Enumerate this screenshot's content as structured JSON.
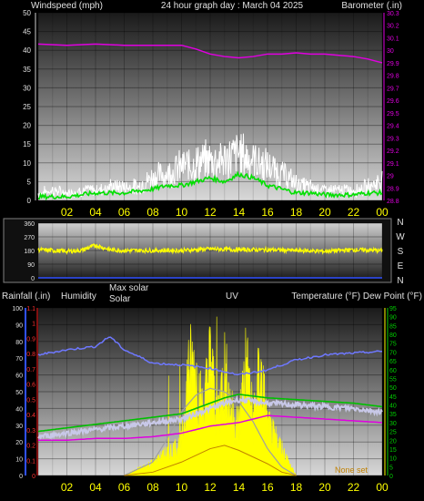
{
  "header": {
    "windspeed_label": "Windspeed (mph)",
    "title": "24 hour graph day : March 04 2025",
    "barometer_label": "Barometer (.in)"
  },
  "direction_labels": [
    "N",
    "W",
    "S",
    "E",
    "N"
  ],
  "lower_header": {
    "rainfall_label": "Rainfall (.in)",
    "humidity_label": "Humidity",
    "maxsolar_label": "Max solar",
    "solar_label": "Solar",
    "uv_label": "UV",
    "temperature_label": "Temperature (°F) Dew Point (°F)"
  },
  "colors": {
    "wind_avg": "#00e000",
    "wind_gust": "#ffffff",
    "barometer": "#e000e0",
    "direction": "#ffff00",
    "humidity": "#6e78ff",
    "solar": "#ffff00",
    "max_solar": "#a0a0a0",
    "uv": "#c08000",
    "temperature": "#ff2020",
    "dewpoint": "#00c000",
    "time_labels": "#ffff00"
  },
  "chart_data": [
    {
      "type": "line",
      "name": "wind-barometer",
      "x_ticks": [
        "02",
        "04",
        "06",
        "08",
        "10",
        "12",
        "14",
        "16",
        "18",
        "20",
        "22",
        "00"
      ],
      "y_left": {
        "label": "Windspeed (mph)",
        "ylim": [
          0,
          50
        ],
        "ticks": [
          "0",
          "5",
          "10",
          "15",
          "20",
          "25",
          "30",
          "35",
          "40",
          "45",
          "50"
        ]
      },
      "y_right": {
        "label": "Barometer (.in)",
        "ylim": [
          28.8,
          30.3
        ],
        "ticks": [
          "28.8",
          "28.9",
          "29",
          "29.1",
          "29.2",
          "29.3",
          "29.4",
          "29.5",
          "29.6",
          "29.7",
          "29.8",
          "29.9",
          "30",
          "30.1",
          "30.2",
          "30.3"
        ]
      },
      "series": [
        {
          "key": "barometer",
          "axis": "right",
          "x": [
            0,
            2,
            4,
            6,
            8,
            10,
            11,
            12,
            13,
            14,
            15,
            16,
            17,
            18,
            19,
            20,
            21,
            22,
            23,
            24
          ],
          "y": [
            30.05,
            30.04,
            30.05,
            30.04,
            30.04,
            30.04,
            30.01,
            29.97,
            29.95,
            29.94,
            29.95,
            29.97,
            29.97,
            29.98,
            29.97,
            29.97,
            29.96,
            29.95,
            29.93,
            29.9
          ]
        },
        {
          "key": "wind_avg",
          "axis": "left",
          "x": [
            0,
            1,
            2,
            3,
            4,
            5,
            6,
            7,
            8,
            9,
            10,
            11,
            12,
            13,
            14,
            15,
            16,
            17,
            18,
            19,
            20,
            21,
            22,
            23,
            24
          ],
          "y": [
            1,
            1,
            1,
            1.5,
            2,
            2,
            2,
            2.5,
            3,
            4,
            4,
            5,
            6,
            5,
            7,
            6,
            4,
            3,
            2,
            2,
            1.5,
            1.5,
            1.5,
            2,
            2
          ]
        },
        {
          "key": "wind_gust",
          "axis": "left",
          "x": [
            0,
            1,
            2,
            3,
            4,
            5,
            6,
            7,
            8,
            9,
            10,
            11,
            12,
            13,
            14,
            15,
            16,
            17,
            18,
            19,
            20,
            21,
            22,
            23,
            24
          ],
          "y": [
            2,
            3,
            2,
            3,
            3,
            4,
            4,
            4,
            7,
            8,
            10,
            11,
            12,
            12,
            14,
            12,
            10,
            8,
            5,
            4,
            3,
            3,
            3,
            4,
            6
          ]
        }
      ]
    },
    {
      "type": "line",
      "name": "wind-direction",
      "x_ticks": [
        "02",
        "04",
        "06",
        "08",
        "10",
        "12",
        "14",
        "16",
        "18",
        "20",
        "22",
        "00"
      ],
      "y": {
        "ylim": [
          0,
          360
        ],
        "ticks": [
          "0",
          "90",
          "180",
          "270",
          "360"
        ]
      },
      "series": [
        {
          "key": "direction",
          "x": [
            0,
            1,
            2,
            3,
            4,
            5,
            6,
            8,
            10,
            12,
            14,
            16,
            18,
            20,
            22,
            24
          ],
          "y": [
            185,
            180,
            175,
            180,
            215,
            185,
            180,
            180,
            180,
            190,
            185,
            185,
            180,
            175,
            185,
            180
          ]
        }
      ]
    },
    {
      "type": "line",
      "name": "solar-temperature",
      "x_ticks": [
        "02",
        "04",
        "06",
        "08",
        "10",
        "12",
        "14",
        "16",
        "18",
        "20",
        "22",
        "00"
      ],
      "y_left_rain": {
        "label": "Rainfall (.in)",
        "ylim": [
          0,
          1.1
        ],
        "ticks": [
          "0",
          "0.1",
          "0.2",
          "0.3",
          "0.4",
          "0.5",
          "0.6",
          "0.7",
          "0.8",
          "0.9",
          "1",
          "1.1"
        ]
      },
      "y_left_humidity": {
        "label": "Humidity",
        "ylim": [
          0,
          100
        ],
        "ticks": [
          "0",
          "10",
          "20",
          "30",
          "40",
          "50",
          "60",
          "70",
          "80",
          "90",
          "100"
        ]
      },
      "y_right_temp": {
        "label": "Temperature (°F) Dew Point (°F)",
        "ylim": [
          0,
          95
        ],
        "ticks": [
          "0",
          "5",
          "10",
          "15",
          "20",
          "25",
          "30",
          "35",
          "40",
          "45",
          "50",
          "55",
          "60",
          "65",
          "70",
          "75",
          "80",
          "85",
          "90",
          "95"
        ]
      },
      "series": [
        {
          "key": "humidity",
          "axis": "humidity",
          "x": [
            0,
            2,
            4,
            5,
            6,
            8,
            10,
            12,
            14,
            16,
            18,
            20,
            22,
            24
          ],
          "y": [
            72,
            75,
            77,
            83,
            75,
            67,
            66,
            64,
            60,
            63,
            69,
            72,
            73,
            74
          ]
        },
        {
          "key": "temperature",
          "axis": "temp",
          "x": [
            0,
            2,
            4,
            6,
            8,
            10,
            11,
            12,
            13,
            14,
            15,
            16,
            18,
            20,
            22,
            24
          ],
          "y": [
            24,
            26,
            28,
            30,
            32,
            34,
            37,
            40,
            43,
            45,
            44,
            43,
            42,
            41,
            40,
            38
          ]
        },
        {
          "key": "dewpoint",
          "axis": "temp",
          "x": [
            0,
            2,
            4,
            6,
            8,
            10,
            12,
            14,
            16,
            18,
            20,
            22,
            24
          ],
          "y": [
            20,
            20,
            21,
            21,
            22,
            24,
            28,
            30,
            34,
            33,
            32,
            31,
            30
          ]
        },
        {
          "key": "max_solar",
          "axis": "humidity",
          "x": [
            6,
            8,
            9,
            10,
            11,
            12,
            13,
            14,
            15,
            16,
            17,
            18
          ],
          "y": [
            0,
            8,
            22,
            38,
            48,
            52,
            50,
            44,
            32,
            16,
            5,
            0
          ]
        },
        {
          "key": "solar",
          "axis": "humidity",
          "x": [
            6,
            7,
            8,
            9,
            10,
            10.5,
            11,
            11.5,
            12,
            12.5,
            13,
            13.5,
            14,
            14.5,
            15,
            15.5,
            16,
            16.5,
            17,
            17.5,
            18
          ],
          "y": [
            0,
            5,
            10,
            18,
            26,
            90,
            85,
            50,
            96,
            48,
            88,
            50,
            42,
            95,
            45,
            88,
            40,
            30,
            22,
            10,
            0
          ]
        },
        {
          "key": "uv",
          "axis": "humidity",
          "x": [
            6,
            8,
            10,
            11,
            12,
            13,
            14,
            15,
            16,
            17,
            18
          ],
          "y": [
            0,
            2,
            8,
            12,
            16,
            18,
            15,
            11,
            7,
            2,
            0
          ]
        }
      ],
      "corner_label": "None set"
    }
  ]
}
